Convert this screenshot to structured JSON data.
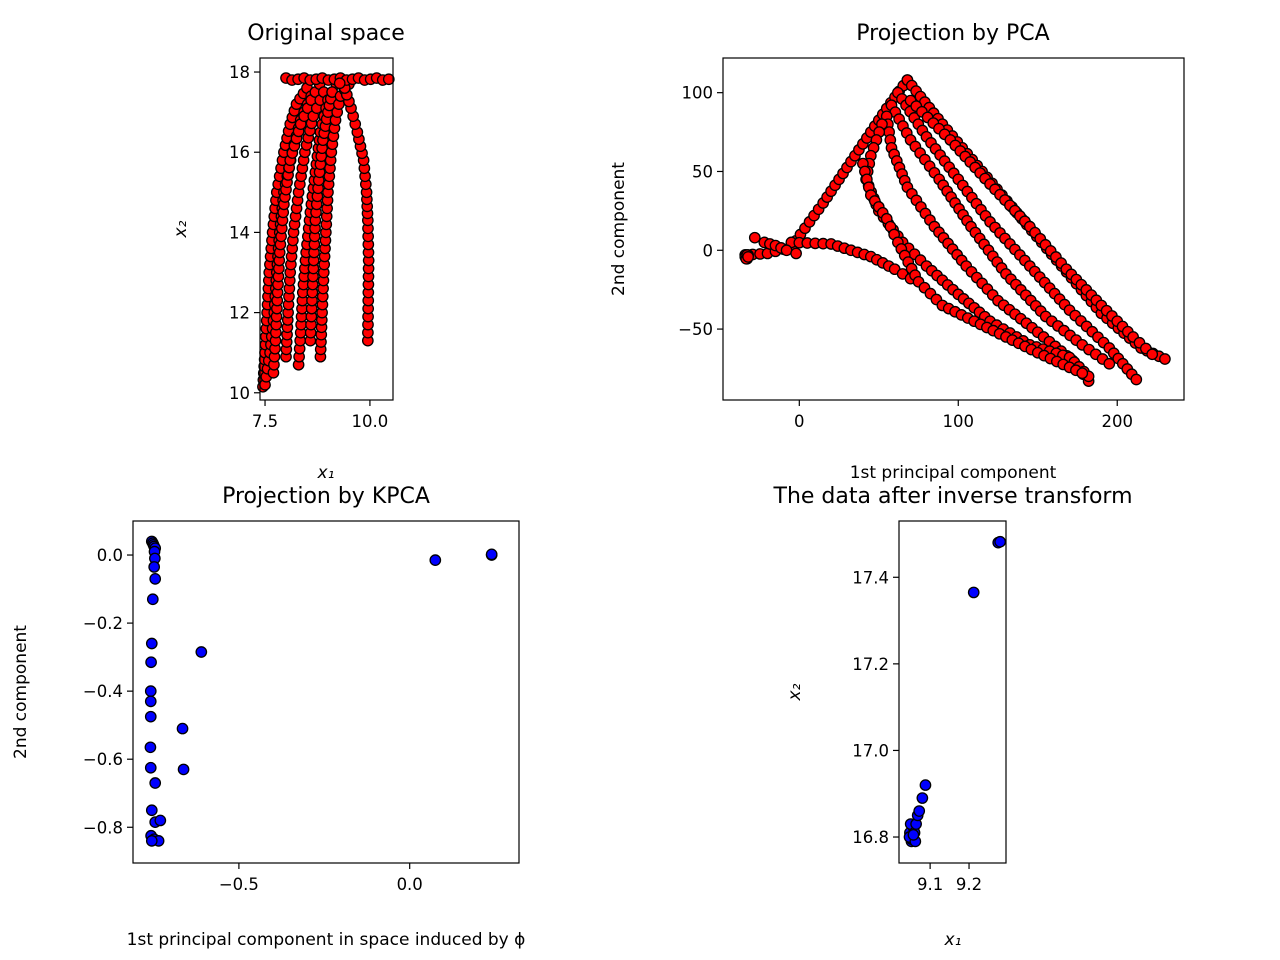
{
  "figure": {
    "background": "#ffffff"
  },
  "chart_data": [
    {
      "id": "orig",
      "type": "scatter",
      "title": "Original space",
      "xlabel": "x₁",
      "ylabel": "x₂",
      "xlim": [
        7.38,
        10.55
      ],
      "ylim": [
        9.82,
        18.35
      ],
      "xticks": [
        {
          "v": 7.5,
          "label": "7.5"
        },
        {
          "v": 10.0,
          "label": "10.0"
        }
      ],
      "yticks": [
        {
          "v": 10,
          "label": "10"
        },
        {
          "v": 12,
          "label": "12"
        },
        {
          "v": 14,
          "label": "14"
        },
        {
          "v": 16,
          "label": "16"
        },
        {
          "v": 18,
          "label": "18"
        }
      ],
      "marker": {
        "fill": "#ff0000",
        "edge": "#000000"
      },
      "polylines": [
        [
          [
            7.45,
            10.15
          ],
          [
            7.5,
            11.0
          ],
          [
            7.55,
            12.0
          ],
          [
            7.6,
            13.0
          ],
          [
            7.68,
            14.0
          ],
          [
            7.78,
            15.0
          ],
          [
            7.95,
            16.0
          ],
          [
            8.1,
            16.7
          ],
          [
            8.25,
            17.2
          ],
          [
            8.5,
            17.6
          ]
        ],
        [
          [
            7.5,
            10.2
          ],
          [
            7.62,
            11.0
          ],
          [
            7.72,
            12.0
          ],
          [
            7.78,
            13.0
          ],
          [
            7.85,
            14.0
          ],
          [
            7.95,
            15.0
          ],
          [
            8.15,
            16.0
          ],
          [
            8.35,
            16.8
          ],
          [
            8.6,
            17.4
          ]
        ],
        [
          [
            7.7,
            10.5
          ],
          [
            7.75,
            11.3
          ],
          [
            7.8,
            12.5
          ],
          [
            7.85,
            13.5
          ],
          [
            7.95,
            14.7
          ],
          [
            8.1,
            15.8
          ],
          [
            8.35,
            16.7
          ],
          [
            8.6,
            17.3
          ],
          [
            8.8,
            17.7
          ]
        ],
        [
          [
            8.0,
            10.9
          ],
          [
            8.05,
            12.0
          ],
          [
            8.1,
            13.0
          ],
          [
            8.18,
            14.0
          ],
          [
            8.3,
            15.0
          ],
          [
            8.45,
            16.0
          ],
          [
            8.65,
            16.9
          ],
          [
            8.9,
            17.5
          ]
        ],
        [
          [
            8.3,
            10.7
          ],
          [
            8.35,
            11.5
          ],
          [
            8.4,
            12.5
          ],
          [
            8.48,
            13.5
          ],
          [
            8.58,
            14.5
          ],
          [
            8.7,
            15.5
          ],
          [
            8.82,
            16.5
          ],
          [
            9.0,
            17.3
          ],
          [
            9.2,
            17.7
          ]
        ],
        [
          [
            8.58,
            11.3
          ],
          [
            8.62,
            12.3
          ],
          [
            8.66,
            13.3
          ],
          [
            8.7,
            14.3
          ],
          [
            8.78,
            15.3
          ],
          [
            8.88,
            16.3
          ],
          [
            9.0,
            17.0
          ],
          [
            9.1,
            17.5
          ]
        ],
        [
          [
            8.82,
            10.9
          ],
          [
            8.86,
            12.0
          ],
          [
            8.9,
            13.0
          ],
          [
            8.95,
            14.0
          ],
          [
            9.0,
            15.0
          ],
          [
            9.08,
            16.0
          ],
          [
            9.18,
            16.8
          ],
          [
            9.3,
            17.4
          ],
          [
            9.5,
            17.7
          ]
        ],
        [
          [
            9.95,
            11.3
          ],
          [
            9.96,
            12.3
          ],
          [
            9.97,
            13.3
          ],
          [
            9.95,
            14.3
          ],
          [
            9.92,
            15.0
          ],
          [
            9.85,
            15.8
          ],
          [
            9.7,
            16.5
          ],
          [
            9.55,
            17.1
          ],
          [
            9.4,
            17.6
          ]
        ]
      ],
      "top_row": {
        "x_range": [
          8.0,
          10.45
        ],
        "y": 17.82
      },
      "highlight_point": [
        9.28,
        17.72
      ]
    },
    {
      "id": "pca",
      "type": "scatter",
      "title": "Projection by PCA",
      "xlabel": "1st principal component",
      "ylabel": "2nd component",
      "xlim": [
        -48,
        242
      ],
      "ylim": [
        -95,
        122
      ],
      "xticks": [
        {
          "v": 0,
          "label": "0"
        },
        {
          "v": 100,
          "label": "100"
        },
        {
          "v": 200,
          "label": "200"
        }
      ],
      "yticks": [
        {
          "v": -50,
          "label": "−50"
        },
        {
          "v": 0,
          "label": "0"
        },
        {
          "v": 50,
          "label": "50"
        },
        {
          "v": 100,
          "label": "100"
        }
      ],
      "marker": {
        "fill": "#ff0000",
        "edge": "#000000"
      },
      "polylines": [
        [
          [
            -34,
            -3
          ],
          [
            -20,
            -2
          ],
          [
            -5,
            2
          ],
          [
            15,
            30
          ],
          [
            35,
            60
          ],
          [
            55,
            90
          ],
          [
            68,
            108
          ]
        ],
        [
          [
            -5,
            5
          ],
          [
            20,
            4
          ],
          [
            45,
            -4
          ],
          [
            60,
            -12
          ],
          [
            70,
            -18
          ]
        ],
        [
          [
            68,
            108
          ],
          [
            90,
            80
          ],
          [
            115,
            50
          ],
          [
            140,
            20
          ],
          [
            165,
            -10
          ],
          [
            190,
            -40
          ],
          [
            215,
            -62
          ],
          [
            230,
            -69
          ]
        ],
        [
          [
            62,
            100
          ],
          [
            80,
            72
          ],
          [
            100,
            45
          ],
          [
            120,
            18
          ],
          [
            145,
            -10
          ],
          [
            170,
            -38
          ],
          [
            195,
            -62
          ],
          [
            212,
            -82
          ]
        ],
        [
          [
            58,
            92
          ],
          [
            70,
            70
          ],
          [
            88,
            45
          ],
          [
            108,
            15
          ],
          [
            130,
            -15
          ],
          [
            155,
            -42
          ],
          [
            178,
            -60
          ],
          [
            195,
            -72
          ]
        ],
        [
          [
            55,
            85
          ],
          [
            58,
            65
          ],
          [
            68,
            40
          ],
          [
            85,
            15
          ],
          [
            105,
            -10
          ],
          [
            125,
            -32
          ],
          [
            150,
            -52
          ],
          [
            172,
            -70
          ],
          [
            182,
            -83
          ]
        ],
        [
          [
            52,
            80
          ],
          [
            45,
            60
          ],
          [
            42,
            45
          ],
          [
            50,
            25
          ],
          [
            65,
            5
          ],
          [
            80,
            -10
          ],
          [
            100,
            -28
          ],
          [
            120,
            -45
          ],
          [
            145,
            -60
          ],
          [
            170,
            -68
          ],
          [
            182,
            -80
          ]
        ],
        [
          [
            40,
            55
          ],
          [
            45,
            35
          ],
          [
            55,
            20
          ],
          [
            62,
            5
          ],
          [
            75,
            -20
          ],
          [
            90,
            -35
          ],
          [
            110,
            -45
          ],
          [
            130,
            -55
          ],
          [
            150,
            -65
          ],
          [
            178,
            -78
          ]
        ],
        [
          [
            70,
            95
          ],
          [
            95,
            70
          ],
          [
            120,
            42
          ],
          [
            145,
            15
          ],
          [
            168,
            -12
          ],
          [
            190,
            -35
          ],
          [
            210,
            -55
          ],
          [
            222,
            -66
          ]
        ],
        [
          [
            -28,
            8
          ],
          [
            -22,
            5
          ],
          [
            -15,
            3
          ],
          [
            -8,
            0
          ],
          [
            -2,
            -2
          ]
        ]
      ],
      "cluster_point": [
        -34,
        -3
      ]
    },
    {
      "id": "kpca",
      "type": "scatter",
      "title": "Projection by KPCA",
      "xlabel": "1st principal component in space induced by ϕ",
      "ylabel": "2nd component",
      "xlim": [
        -0.81,
        0.32
      ],
      "ylim": [
        -0.905,
        0.1
      ],
      "xticks": [
        {
          "v": -0.5,
          "label": "−0.5"
        },
        {
          "v": 0.0,
          "label": "0.0"
        }
      ],
      "yticks": [
        {
          "v": 0.0,
          "label": "0.0"
        },
        {
          "v": -0.2,
          "label": "−0.2"
        },
        {
          "v": -0.4,
          "label": "−0.4"
        },
        {
          "v": -0.6,
          "label": "−0.6"
        },
        {
          "v": -0.8,
          "label": "−0.8"
        }
      ],
      "marker": {
        "fill": "#0000ff",
        "edge": "#000000"
      },
      "points": [
        [
          -0.755,
          0.04
        ],
        [
          -0.752,
          0.035
        ],
        [
          -0.75,
          0.03
        ],
        [
          -0.748,
          0.025
        ],
        [
          -0.745,
          0.02
        ],
        [
          -0.747,
          0.01
        ],
        [
          -0.746,
          -0.01
        ],
        [
          -0.748,
          -0.035
        ],
        [
          -0.745,
          -0.07
        ],
        [
          -0.752,
          -0.13
        ],
        [
          -0.755,
          -0.26
        ],
        [
          -0.757,
          -0.315
        ],
        [
          -0.758,
          -0.4
        ],
        [
          -0.758,
          -0.43
        ],
        [
          -0.758,
          -0.475
        ],
        [
          -0.759,
          -0.565
        ],
        [
          -0.758,
          -0.625
        ],
        [
          -0.745,
          -0.67
        ],
        [
          -0.755,
          -0.75
        ],
        [
          -0.745,
          -0.785
        ],
        [
          -0.73,
          -0.78
        ],
        [
          -0.757,
          -0.825
        ],
        [
          -0.748,
          -0.835
        ],
        [
          -0.735,
          -0.84
        ],
        [
          -0.755,
          -0.84
        ],
        [
          -0.61,
          -0.285
        ],
        [
          -0.665,
          -0.51
        ],
        [
          -0.662,
          -0.63
        ],
        [
          0.075,
          -0.015
        ],
        [
          0.24,
          0.0
        ],
        [
          0.24,
          0.002
        ]
      ]
    },
    {
      "id": "inverse",
      "type": "scatter",
      "title": "The data after inverse transform",
      "xlabel": "x₁",
      "ylabel": "x₂",
      "xlim": [
        9.02,
        9.295
      ],
      "ylim": [
        16.74,
        17.53
      ],
      "xticks": [
        {
          "v": 9.1,
          "label": "9.1"
        },
        {
          "v": 9.2,
          "label": "9.2"
        }
      ],
      "yticks": [
        {
          "v": 16.8,
          "label": "16.8"
        },
        {
          "v": 17.0,
          "label": "17.0"
        },
        {
          "v": 17.2,
          "label": "17.2"
        },
        {
          "v": 17.4,
          "label": "17.4"
        }
      ],
      "marker": {
        "fill": "#0000ff",
        "edge": "#000000"
      },
      "points": [
        [
          9.052,
          16.79
        ],
        [
          9.055,
          16.8
        ],
        [
          9.048,
          16.81
        ],
        [
          9.058,
          16.82
        ],
        [
          9.05,
          16.83
        ],
        [
          9.06,
          16.81
        ],
        [
          9.064,
          16.83
        ],
        [
          9.053,
          16.795
        ],
        [
          9.047,
          16.8
        ],
        [
          9.068,
          16.85
        ],
        [
          9.072,
          16.86
        ],
        [
          9.08,
          16.89
        ],
        [
          9.088,
          16.92
        ],
        [
          9.062,
          16.79
        ],
        [
          9.057,
          16.805
        ],
        [
          9.212,
          17.365
        ],
        [
          9.275,
          17.48
        ],
        [
          9.28,
          17.482
        ]
      ]
    }
  ]
}
